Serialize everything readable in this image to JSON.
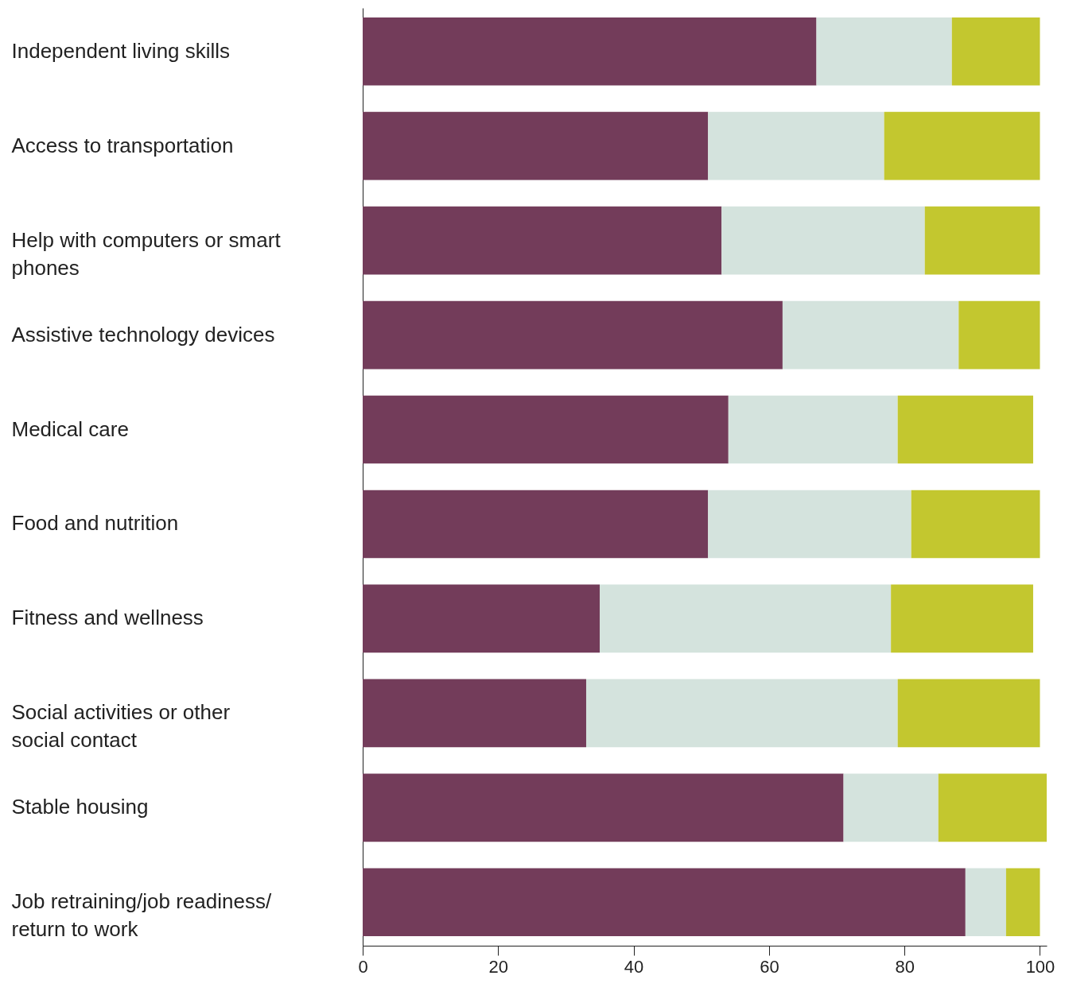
{
  "chart_data": {
    "type": "bar",
    "orientation": "horizontal",
    "stacked": true,
    "categories": [
      "Independent living skills",
      "Access to transportation",
      "Help with computers or smart phones",
      "Assistive technology devices",
      "Medical care",
      "Food and nutrition",
      "Fitness and wellness",
      "Social activities or other social contact",
      "Stable housing",
      "Job retraining/job readiness/ return to work"
    ],
    "series": [
      {
        "color": "#733c5a",
        "values": [
          67,
          51,
          53,
          62,
          54,
          51,
          35,
          33,
          71,
          89
        ]
      },
      {
        "color": "#d4e3dd",
        "values": [
          20,
          26,
          30,
          26,
          25,
          30,
          43,
          46,
          14,
          6
        ]
      },
      {
        "color": "#c3c72f",
        "values": [
          13,
          23,
          17,
          12,
          20,
          19,
          21,
          21,
          16,
          5
        ]
      }
    ],
    "xlim": [
      0,
      101
    ],
    "xticks": [
      0,
      20,
      40,
      60,
      80,
      100
    ],
    "grid": false
  }
}
